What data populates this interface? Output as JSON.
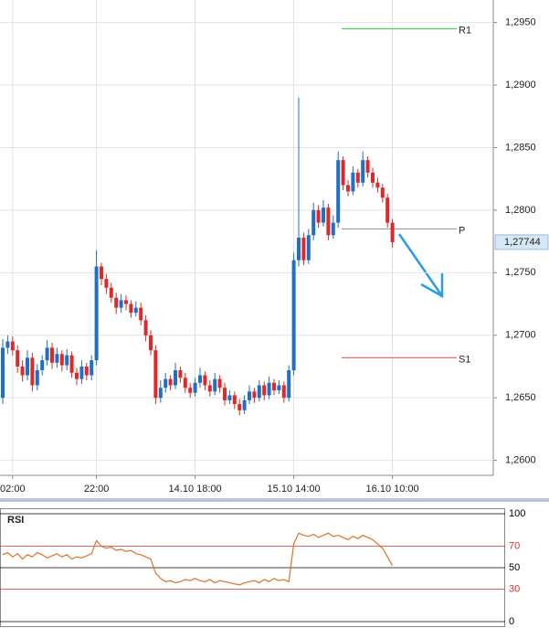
{
  "chart_data": [
    {
      "type": "candlestick",
      "categories": [
        null,
        null,
        "02:00",
        null,
        null,
        null,
        null,
        null,
        null,
        null,
        null,
        null,
        null,
        null,
        null,
        null,
        null,
        null,
        null,
        "22:00",
        null,
        null,
        null,
        null,
        null,
        null,
        null,
        null,
        null,
        null,
        null,
        null,
        null,
        null,
        null,
        null,
        null,
        null,
        null,
        "14.10 18:00",
        null,
        null,
        null,
        null,
        null,
        null,
        null,
        null,
        null,
        null,
        null,
        null,
        null,
        null,
        null,
        null,
        null,
        null,
        null,
        "15.10 14:00",
        null,
        null,
        null,
        null,
        null,
        null,
        null,
        null,
        null,
        null,
        null,
        null,
        null,
        null,
        null,
        null,
        null,
        null,
        null,
        "16.10 10:00"
      ],
      "open": [
        1.265,
        1.269,
        1.2695,
        1.2688,
        1.2675,
        1.2668,
        1.2682,
        1.266,
        1.2672,
        1.268,
        1.269,
        1.2678,
        1.2685,
        1.2676,
        1.2684,
        1.267,
        1.2665,
        1.2675,
        1.2668,
        1.268,
        1.2755,
        1.2745,
        1.2738,
        1.273,
        1.2722,
        1.2728,
        1.2725,
        1.2718,
        1.2722,
        1.2712,
        1.27,
        1.2688,
        1.265,
        1.2658,
        1.2665,
        1.266,
        1.2672,
        1.2666,
        1.2658,
        1.2654,
        1.2662,
        1.2668,
        1.266,
        1.2655,
        1.2665,
        1.2658,
        1.2648,
        1.2652,
        1.2645,
        1.264,
        1.2648,
        1.2655,
        1.265,
        1.266,
        1.2652,
        1.2662,
        1.2656,
        1.266,
        1.265,
        1.2672,
        1.276,
        1.2778,
        1.276,
        1.278,
        1.28,
        1.279,
        1.2802,
        1.278,
        1.279,
        1.284,
        1.282,
        1.2815,
        1.283,
        1.2822,
        1.284,
        1.283,
        1.2822,
        1.2818,
        1.281,
        1.279
      ],
      "high": [
        1.2697,
        1.27,
        1.2699,
        1.2692,
        1.268,
        1.2688,
        1.2686,
        1.2677,
        1.2684,
        1.2696,
        1.2694,
        1.269,
        1.2688,
        1.2689,
        1.2687,
        1.2674,
        1.268,
        1.2678,
        1.2684,
        1.2768,
        1.2758,
        1.2749,
        1.2742,
        1.2734,
        1.2733,
        1.2732,
        1.2728,
        1.2727,
        1.2726,
        1.2716,
        1.2704,
        1.2692,
        1.2664,
        1.267,
        1.2668,
        1.2678,
        1.2675,
        1.267,
        1.2662,
        1.2666,
        1.2674,
        1.2671,
        1.2664,
        1.267,
        1.2668,
        1.2662,
        1.2656,
        1.2655,
        1.2649,
        1.2652,
        1.266,
        1.2658,
        1.2664,
        1.2663,
        1.2667,
        1.2665,
        1.2664,
        1.2663,
        1.2676,
        1.2766,
        1.289,
        1.2782,
        1.2785,
        1.2806,
        1.2804,
        1.2808,
        1.2805,
        1.2796,
        1.2847,
        1.2843,
        1.2824,
        1.2835,
        1.2833,
        1.2847,
        1.2843,
        1.2834,
        1.2826,
        1.2821,
        1.2813,
        1.2793
      ],
      "low": [
        1.2645,
        1.2685,
        1.2684,
        1.267,
        1.2663,
        1.2664,
        1.2655,
        1.2656,
        1.2668,
        1.2676,
        1.2673,
        1.2674,
        1.2671,
        1.2672,
        1.2666,
        1.266,
        1.2661,
        1.2664,
        1.2664,
        1.2676,
        1.274,
        1.2733,
        1.2726,
        1.2717,
        1.2718,
        1.272,
        1.2714,
        1.2715,
        1.2708,
        1.2695,
        1.2684,
        1.2645,
        1.2646,
        1.2654,
        1.2656,
        1.2657,
        1.2662,
        1.2654,
        1.265,
        1.2651,
        1.2658,
        1.2656,
        1.2651,
        1.2652,
        1.2654,
        1.2644,
        1.2645,
        1.2641,
        1.2636,
        1.2637,
        1.2645,
        1.2646,
        1.2647,
        1.2648,
        1.2649,
        1.2652,
        1.2653,
        1.2646,
        1.2647,
        1.2668,
        1.2755,
        1.2756,
        1.2757,
        1.2776,
        1.2786,
        1.2787,
        1.2776,
        1.2777,
        1.2786,
        1.2816,
        1.2811,
        1.2812,
        1.2818,
        1.2819,
        1.2826,
        1.2818,
        1.2814,
        1.2806,
        1.2786,
        1.277
      ],
      "close": [
        1.269,
        1.2695,
        1.2688,
        1.2675,
        1.2668,
        1.2682,
        1.266,
        1.2672,
        1.268,
        1.269,
        1.2678,
        1.2685,
        1.2676,
        1.2684,
        1.267,
        1.2665,
        1.2675,
        1.2668,
        1.268,
        1.2755,
        1.2745,
        1.2738,
        1.273,
        1.2722,
        1.2728,
        1.2725,
        1.2718,
        1.2722,
        1.2712,
        1.27,
        1.2688,
        1.265,
        1.2658,
        1.2665,
        1.266,
        1.2672,
        1.2666,
        1.2658,
        1.2654,
        1.2662,
        1.2668,
        1.266,
        1.2655,
        1.2665,
        1.2658,
        1.2648,
        1.2652,
        1.2645,
        1.264,
        1.2648,
        1.2655,
        1.265,
        1.266,
        1.2652,
        1.2662,
        1.2656,
        1.266,
        1.265,
        1.2672,
        1.276,
        1.2778,
        1.276,
        1.278,
        1.28,
        1.279,
        1.2802,
        1.278,
        1.279,
        1.284,
        1.282,
        1.2815,
        1.283,
        1.2822,
        1.284,
        1.283,
        1.2822,
        1.2818,
        1.281,
        1.279,
        1.27744
      ],
      "up_color": "#1f6fc8",
      "down_color": "#e02828",
      "ylim": [
        1.2588,
        1.2968
      ],
      "yticks": [
        {
          "value": 1.295,
          "label": "1,2950"
        },
        {
          "value": 1.29,
          "label": "1,2900"
        },
        {
          "value": 1.285,
          "label": "1,2850"
        },
        {
          "value": 1.28,
          "label": "1,2800"
        },
        {
          "value": 1.275,
          "label": "1,2750"
        },
        {
          "value": 1.27,
          "label": "1,2700"
        },
        {
          "value": 1.265,
          "label": "1,2650"
        },
        {
          "value": 1.26,
          "label": "1,2600"
        }
      ],
      "grid": true,
      "levels": [
        {
          "name": "R1",
          "value": 1.2945,
          "color": "#55cc55"
        },
        {
          "name": "P",
          "value": 1.2785,
          "color": "#a0a0a0"
        },
        {
          "name": "S1",
          "value": 1.2682,
          "color": "#e07070"
        }
      ],
      "last_price": {
        "value": 1.27744,
        "label": "1,27744"
      }
    },
    {
      "type": "line",
      "title": "RSI",
      "color": "#e0702a",
      "values": [
        62,
        64,
        60,
        63,
        58,
        62,
        60,
        64,
        62,
        59,
        61,
        63,
        60,
        62,
        58,
        60,
        59,
        61,
        63,
        75,
        70,
        68,
        69,
        66,
        67,
        65,
        66,
        63,
        62,
        60,
        58,
        45,
        40,
        37,
        38,
        36,
        37,
        39,
        38,
        40,
        38,
        37,
        39,
        36,
        38,
        37,
        36,
        35,
        34,
        36,
        37,
        38,
        36,
        39,
        37,
        40,
        38,
        39,
        37,
        72,
        82,
        80,
        79,
        81,
        78,
        80,
        82,
        79,
        80,
        78,
        76,
        79,
        77,
        80,
        78,
        76,
        72,
        68,
        60,
        52
      ],
      "ylim": [
        0,
        100
      ],
      "yticks": [
        100,
        70,
        50,
        30,
        0
      ],
      "ytick_colors": [
        "#000000",
        "#d83030",
        "#000000",
        "#d83030",
        "#000000"
      ]
    }
  ]
}
